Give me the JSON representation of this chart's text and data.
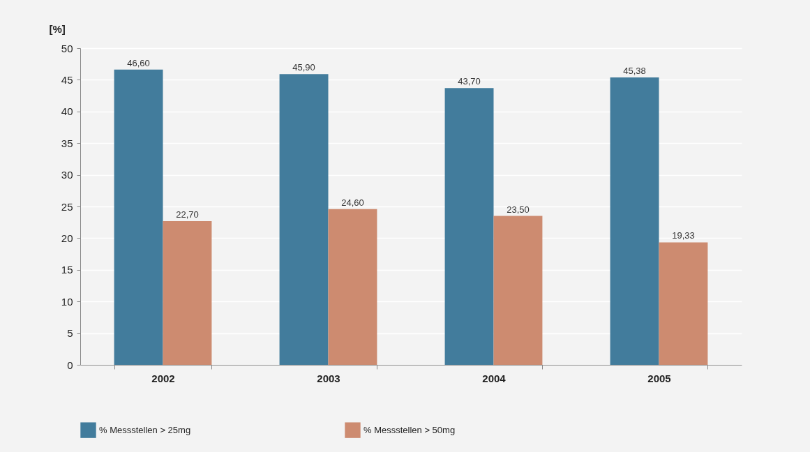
{
  "chart_data": {
    "type": "bar",
    "ylabel": "[%]",
    "categories": [
      "2002",
      "2003",
      "2004",
      "2005"
    ],
    "series": [
      {
        "name": "% Messstellen > 25mg",
        "color": "#427c9c",
        "values": [
          46.6,
          45.9,
          43.7,
          45.38
        ],
        "value_labels": [
          "46,60",
          "45,90",
          "43,70",
          "45,38"
        ]
      },
      {
        "name": "% Messstellen > 50mg",
        "color": "#cd8b70",
        "values": [
          22.7,
          24.6,
          23.5,
          19.33
        ],
        "value_labels": [
          "22,70",
          "24,60",
          "23,50",
          "19,33"
        ]
      }
    ],
    "ylim": [
      0,
      50
    ],
    "yticks": [
      0,
      5,
      10,
      15,
      20,
      25,
      30,
      35,
      40,
      45,
      50
    ],
    "grid": "y",
    "legend": "bottom"
  }
}
